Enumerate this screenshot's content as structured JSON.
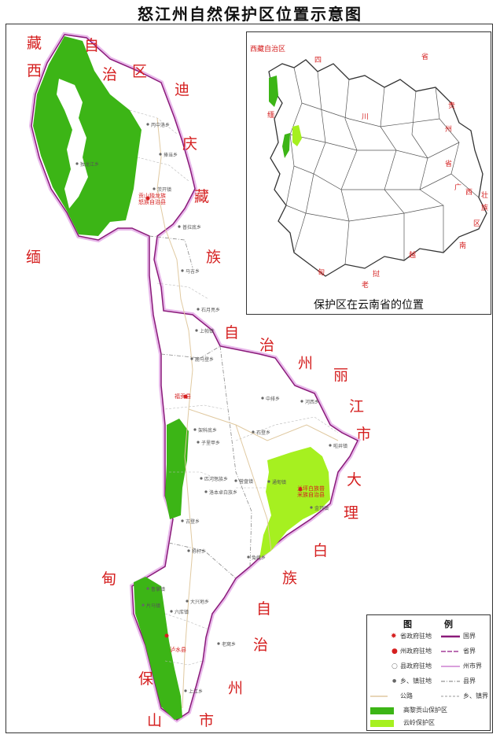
{
  "title": "怒江州自然保护区位置示意图",
  "colors": {
    "gaoligong": "#3cb516",
    "yunling": "#a6f020",
    "province_border": "#8a1a7a",
    "prefecture_border": "#d9a0dc",
    "label_red": "#d52020"
  },
  "region_labels": [
    {
      "text": "藏"
    },
    {
      "text": "西"
    },
    {
      "text": "自"
    },
    {
      "text": "治"
    },
    {
      "text": "区"
    },
    {
      "text": "迪"
    },
    {
      "text": "庆"
    },
    {
      "text": "藏"
    },
    {
      "text": "族"
    },
    {
      "text": "自"
    },
    {
      "text": "治"
    },
    {
      "text": "州"
    },
    {
      "text": "丽"
    },
    {
      "text": "江"
    },
    {
      "text": "市"
    },
    {
      "text": "大"
    },
    {
      "text": "理"
    },
    {
      "text": "白"
    },
    {
      "text": "族"
    },
    {
      "text": "自"
    },
    {
      "text": "治"
    },
    {
      "text": "州"
    },
    {
      "text": "缅"
    },
    {
      "text": "甸"
    },
    {
      "text": "保"
    },
    {
      "text": "山"
    },
    {
      "text": "市"
    }
  ],
  "county_seats": [
    {
      "text": "贡山独龙族\n怒族自治县"
    },
    {
      "text": "福贡县"
    },
    {
      "text": "兰坪白族普\n米族自治县"
    },
    {
      "text": "泸水县"
    }
  ],
  "towns": [
    "丙中洛乡",
    "捧当乡",
    "茨开镇",
    "普拉底乡",
    "独龙江乡",
    "马吉乡",
    "石月亮乡",
    "上帕镇",
    "鹿马登乡",
    "架科底乡",
    "子里甲乡",
    "匹河怒族乡",
    "中排乡",
    "石登乡",
    "河西乡",
    "金顶镇",
    "营盘镇",
    "通甸镇",
    "兔峨乡",
    "啦井镇",
    "称杆乡",
    "古登乡",
    "洛本卓白族乡",
    "老窝乡",
    "六库镇",
    "片马镇",
    "鲁掌镇",
    "上江乡",
    "大兴地乡"
  ],
  "inset": {
    "caption": "保护区在云南省的位置",
    "labels": [
      {
        "text": "西藏自治区"
      },
      {
        "text": "四"
      },
      {
        "text": "省"
      },
      {
        "text": "川"
      },
      {
        "text": "贵"
      },
      {
        "text": "州"
      },
      {
        "text": "省"
      },
      {
        "text": "广"
      },
      {
        "text": "西"
      },
      {
        "text": "壮"
      },
      {
        "text": "族"
      },
      {
        "text": "区"
      },
      {
        "text": "缅"
      },
      {
        "text": "甸"
      },
      {
        "text": "老"
      },
      {
        "text": "挝"
      },
      {
        "text": "越"
      },
      {
        "text": "南"
      }
    ]
  },
  "legend": {
    "title_left": "图",
    "title_right": "例",
    "rows": [
      {
        "left": "省政府驻地",
        "right": "国界"
      },
      {
        "left": "州政府驻地",
        "right": "省界"
      },
      {
        "left": "县政府驻地",
        "right": "州市界"
      },
      {
        "left": "乡、镇驻地",
        "right": "县界"
      },
      {
        "left": "公路",
        "right": "乡、镇界"
      }
    ],
    "areas": [
      {
        "label": "高黎贡山保护区"
      },
      {
        "label": "云岭保护区"
      }
    ]
  }
}
